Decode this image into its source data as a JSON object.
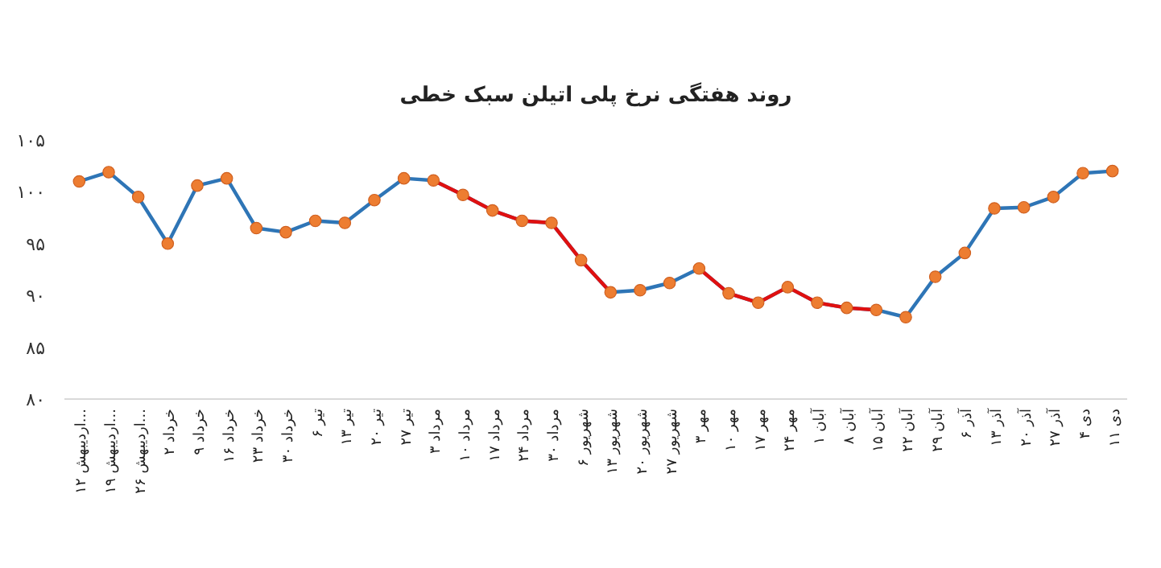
{
  "chart_data": {
    "type": "line",
    "title": "روند هفتگی نرخ پلی اتیلن سبک خطی",
    "categories": [
      "۱۲ اردیبهش...",
      "۱۹ اردیبهش...",
      "۲۶ اردیبهش...",
      "۲ خرداد",
      "۹ خرداد",
      "۱۶ خرداد",
      "۲۳ خرداد",
      "۳۰ خرداد",
      "۶ تیر",
      "۱۳ تیر",
      "۲۰ تیر",
      "۲۷ تیر",
      "۳ مرداد",
      "۱۰ مرداد",
      "۱۷ مرداد",
      "۲۴ مرداد",
      "۳۰ مرداد",
      "۶ شهریور",
      "۱۳ شهریور",
      "۲۰ شهریور",
      "۲۷ شهریور",
      "۳ مهر",
      "۱۰ مهر",
      "۱۷ مهر",
      "۲۴ مهر",
      "۱ آبان",
      "۸ آبان",
      "۱۵ آبان",
      "۲۲ آبان",
      "۲۹ آبان",
      "۶ آذر",
      "۱۳ آذر",
      "۲۰ آذر",
      "۲۷ آذر",
      "۴ دی",
      "۱۱ دی"
    ],
    "series": [
      {
        "color": "#2e75b6",
        "colors": [
          "#ed7d31",
          "#ed7d31",
          "#ed7d31",
          "#ed7d31",
          "#ed7d31",
          "#ed7d31",
          "#ed7d31",
          "#ed7d31",
          "#ed7d31",
          "#ed7d31",
          "#ed7d31",
          "#ed7d31",
          "#ed7d31",
          "#ed7d31",
          "#ed7d31",
          "#ed7d31",
          "#ed7d31",
          "#ed7d31",
          "#ed7d31",
          "#ed7d31",
          "#ed7d31",
          "#ed7d31",
          "#ed7d31",
          "#ed7d31",
          "#ed7d31",
          "#ed7d31",
          "#ed7d31",
          "#ed7d31",
          "#ed7d31",
          "#ed7d31",
          "#ed7d31",
          "#ed7d31",
          "#ed7d31",
          "#ed7d31",
          "#ed7d31",
          "#ed7d31"
        ],
        "marker": "circle",
        "values": [
          101.0,
          101.9,
          99.5,
          95.0,
          100.6,
          101.3,
          96.5,
          96.1,
          97.2,
          97.0,
          99.2,
          101.3,
          101.1,
          99.7,
          98.2,
          97.2,
          97.0,
          93.4,
          90.3,
          90.5,
          91.2,
          92.6,
          90.2,
          89.3,
          90.8,
          89.3,
          88.8,
          88.6,
          87.9,
          91.8,
          94.1,
          98.4,
          98.5,
          99.5,
          101.8,
          102.0
        ]
      },
      {
        "color": "#e01010",
        "marker": "none",
        "values": [
          null,
          null,
          null,
          null,
          null,
          null,
          null,
          null,
          null,
          null,
          null,
          null,
          101.1,
          99.7,
          98.2,
          97.2,
          97.0,
          93.4,
          90.3,
          null,
          null,
          92.6,
          90.2,
          89.3,
          90.8,
          89.3,
          88.8,
          88.6,
          null,
          null,
          null,
          null,
          null,
          null,
          null,
          null
        ]
      }
    ],
    "ylim": [
      80,
      105
    ],
    "yticks": [
      {
        "value": 80,
        "label": "۸۰"
      },
      {
        "value": 85,
        "label": "۸۵"
      },
      {
        "value": 90,
        "label": "۹۰"
      },
      {
        "value": 95,
        "label": "۹۵"
      },
      {
        "value": 100,
        "label": "۱۰۰"
      },
      {
        "value": 105,
        "label": "۱۰۵"
      }
    ],
    "grid": false
  }
}
